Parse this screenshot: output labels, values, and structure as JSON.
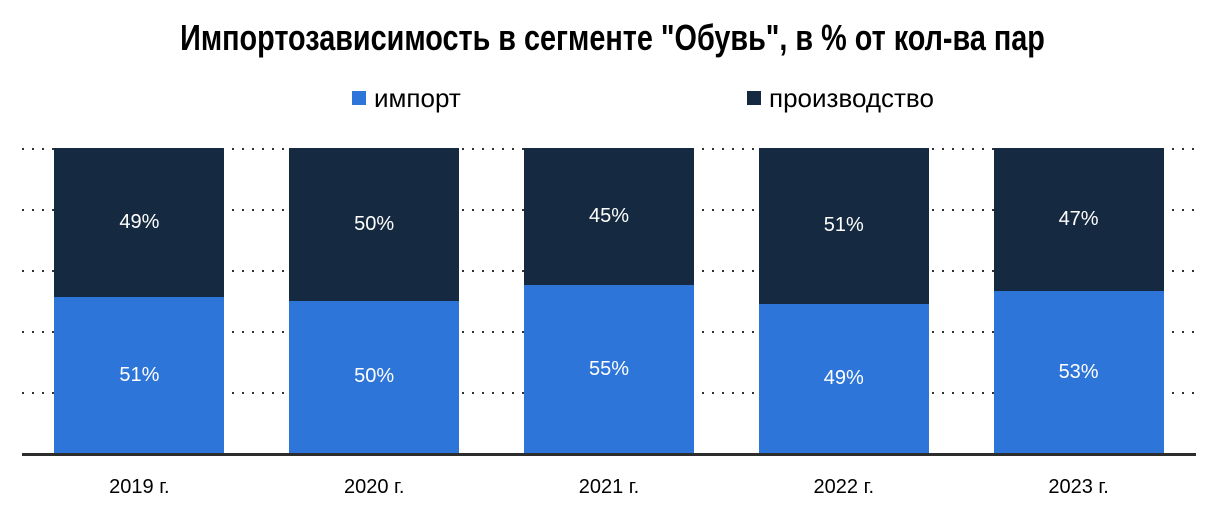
{
  "title": "Импортозависимость в сегменте \"Обувь\", в % от кол-ва пар",
  "legend": {
    "position": "top",
    "items": [
      {
        "label": "импорт",
        "color": "#2d75d8"
      },
      {
        "label": "производство",
        "color": "#152a40"
      }
    ]
  },
  "chart_data": {
    "type": "bar",
    "subtype": "stacked-100",
    "title": "Импортозависимость в сегменте \"Обувь\", в % от кол-ва пар",
    "categories": [
      "2019 г.",
      "2020 г.",
      "2021 г.",
      "2022 г.",
      "2023 г."
    ],
    "series": [
      {
        "name": "импорт",
        "key": "import",
        "color": "#2d75d8",
        "values": [
          51,
          50,
          55,
          49,
          53
        ]
      },
      {
        "name": "производство",
        "key": "production",
        "color": "#152a40",
        "values": [
          49,
          50,
          45,
          51,
          47
        ]
      }
    ],
    "stack_order_top_to_bottom": [
      "production",
      "import"
    ],
    "value_suffix": "%",
    "value_labels": "inside-center-white",
    "xlabel": "",
    "ylabel": "",
    "ylim": [
      0,
      100
    ],
    "gridlines": "dotted-horizontal",
    "gridline_interval_pct": 20,
    "y_axis_tick_labels_visible": false,
    "legend_position": "top"
  },
  "colors": {
    "import": "#2d75d8",
    "production": "#152a40",
    "axis_line": "#2d2d2d",
    "grid_dots": "#333333",
    "background": "#ffffff",
    "value_label_text": "#ffffff",
    "text": "#000000"
  }
}
